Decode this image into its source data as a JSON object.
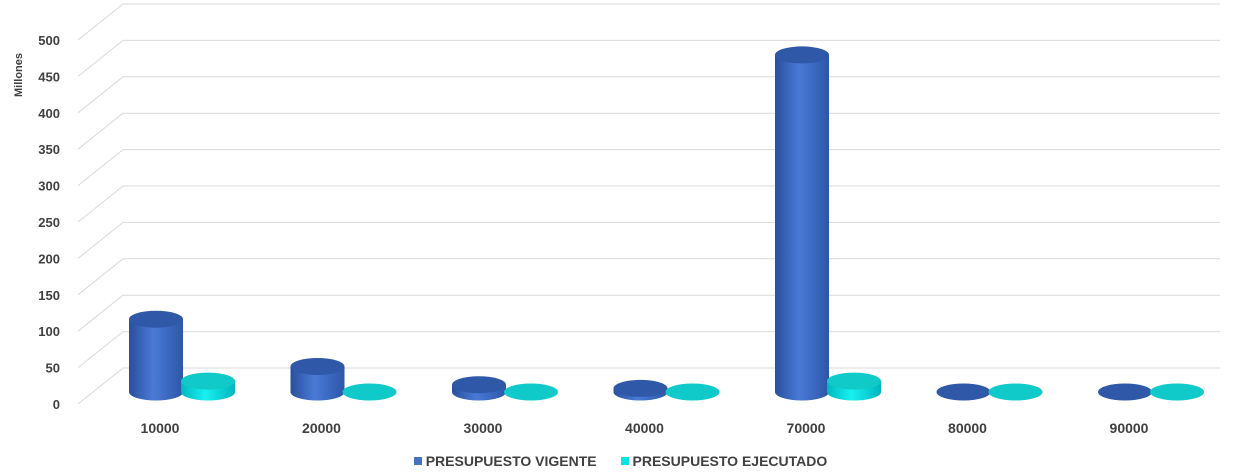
{
  "chart_data": {
    "type": "bar",
    "ylabel": "Millones",
    "ylim": [
      0,
      500
    ],
    "yticks": [
      0,
      50,
      100,
      150,
      200,
      250,
      300,
      350,
      400,
      450,
      500
    ],
    "categories": [
      "10000",
      "20000",
      "30000",
      "40000",
      "70000",
      "80000",
      "90000"
    ],
    "series": [
      {
        "name": "PRESUPUESTO VIGENTE",
        "color": "#4472C4",
        "values": [
          100,
          35,
          10,
          5,
          463,
          0,
          0
        ]
      },
      {
        "name": "PRESUPUESTO EJECUTADO",
        "color": "#00E5E5",
        "values": [
          15,
          0,
          0,
          0,
          15,
          0,
          0
        ]
      }
    ],
    "grid": true,
    "legend": "bottom-center"
  }
}
